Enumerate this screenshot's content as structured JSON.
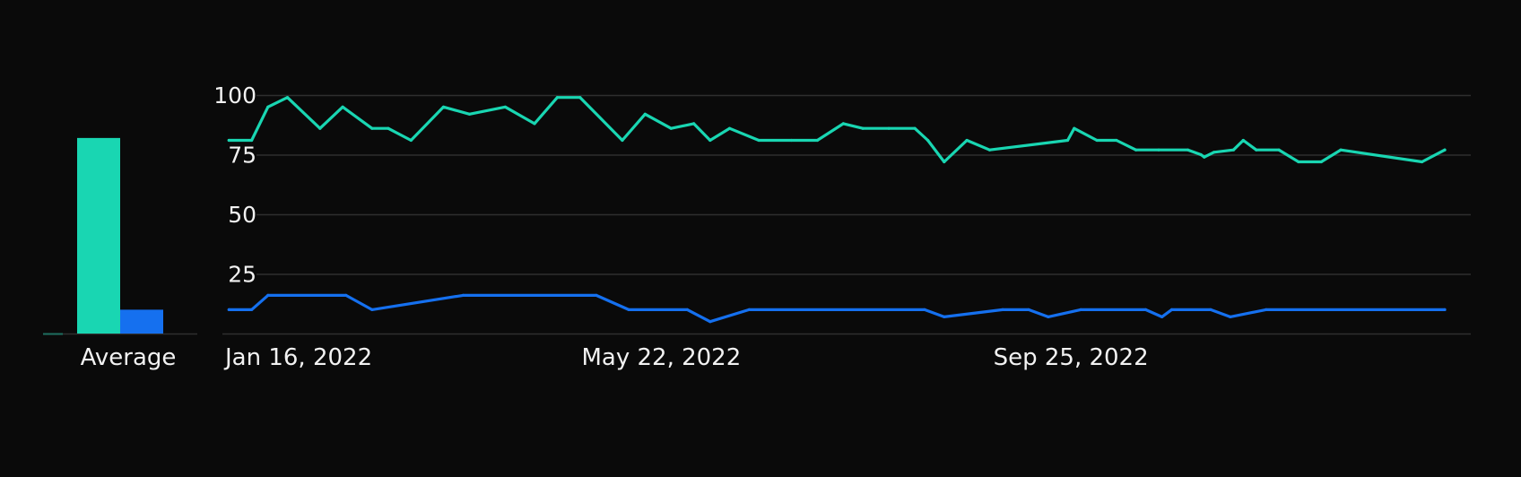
{
  "colors": {
    "background": "#0a0a0a",
    "series_green": "#19d6b2",
    "series_blue": "#1570ef",
    "grid": "#2e2e2e",
    "text": "#f2f2f2"
  },
  "chart_data": [
    {
      "type": "bar",
      "categories": [
        "Average"
      ],
      "series": [
        {
          "color": "#19d6b2",
          "values": [
            82
          ]
        },
        {
          "color": "#1570ef",
          "values": [
            10
          ]
        }
      ],
      "ylim": [
        0,
        100
      ],
      "grid": false
    },
    {
      "type": "line",
      "x_tick_labels": [
        "Jan 16, 2022",
        "May 22, 2022",
        "Sep 25, 2022"
      ],
      "x_ticks": [
        "2022-01-16",
        "2022-05-22",
        "2022-09-25"
      ],
      "y_ticks": [
        25,
        50,
        75,
        100
      ],
      "y_tick_labels": [
        "25",
        "50",
        "75",
        "100"
      ],
      "ylim": [
        0,
        100
      ],
      "xlim": [
        "2022-01-07",
        "2023-01-26"
      ],
      "grid": true,
      "series": [
        {
          "color": "#19d6b2",
          "points": [
            [
              "2022-01-09",
              81
            ],
            [
              "2022-01-16",
              81
            ],
            [
              "2022-01-21",
              95
            ],
            [
              "2022-01-27",
              99
            ],
            [
              "2022-02-06",
              86
            ],
            [
              "2022-02-13",
              95
            ],
            [
              "2022-02-22",
              86
            ],
            [
              "2022-02-27",
              86
            ],
            [
              "2022-03-06",
              81
            ],
            [
              "2022-03-16",
              95
            ],
            [
              "2022-03-24",
              92
            ],
            [
              "2022-04-04",
              95
            ],
            [
              "2022-04-13",
              88
            ],
            [
              "2022-04-20",
              99
            ],
            [
              "2022-04-27",
              99
            ],
            [
              "2022-05-10",
              81
            ],
            [
              "2022-05-17",
              92
            ],
            [
              "2022-05-25",
              86
            ],
            [
              "2022-06-01",
              88
            ],
            [
              "2022-06-06",
              81
            ],
            [
              "2022-06-12",
              86
            ],
            [
              "2022-06-21",
              81
            ],
            [
              "2022-07-01",
              81
            ],
            [
              "2022-07-09",
              81
            ],
            [
              "2022-07-17",
              88
            ],
            [
              "2022-07-23",
              86
            ],
            [
              "2022-07-31",
              86
            ],
            [
              "2022-08-08",
              86
            ],
            [
              "2022-08-12",
              81
            ],
            [
              "2022-08-17",
              72
            ],
            [
              "2022-08-24",
              81
            ],
            [
              "2022-08-31",
              77
            ],
            [
              "2022-09-24",
              81
            ],
            [
              "2022-09-26",
              86
            ],
            [
              "2022-10-03",
              81
            ],
            [
              "2022-10-09",
              81
            ],
            [
              "2022-10-15",
              77
            ],
            [
              "2022-10-22",
              77
            ],
            [
              "2022-10-31",
              77
            ],
            [
              "2022-11-04",
              75
            ],
            [
              "2022-11-05",
              74
            ],
            [
              "2022-11-08",
              76
            ],
            [
              "2022-11-14",
              77
            ],
            [
              "2022-11-17",
              81
            ],
            [
              "2022-11-21",
              77
            ],
            [
              "2022-11-28",
              77
            ],
            [
              "2022-12-04",
              72
            ],
            [
              "2022-12-11",
              72
            ],
            [
              "2022-12-17",
              77
            ],
            [
              "2023-01-11",
              72
            ],
            [
              "2023-01-18",
              77
            ]
          ]
        },
        {
          "color": "#1570ef",
          "points": [
            [
              "2022-01-09",
              10
            ],
            [
              "2022-01-16",
              10
            ],
            [
              "2022-01-21",
              16
            ],
            [
              "2022-02-14",
              16
            ],
            [
              "2022-02-22",
              10
            ],
            [
              "2022-03-22",
              16
            ],
            [
              "2022-05-02",
              16
            ],
            [
              "2022-05-12",
              10
            ],
            [
              "2022-05-30",
              10
            ],
            [
              "2022-06-06",
              5
            ],
            [
              "2022-06-18",
              10
            ],
            [
              "2022-08-11",
              10
            ],
            [
              "2022-08-17",
              7
            ],
            [
              "2022-09-04",
              10
            ],
            [
              "2022-09-12",
              10
            ],
            [
              "2022-09-18",
              7
            ],
            [
              "2022-09-28",
              10
            ],
            [
              "2022-10-18",
              10
            ],
            [
              "2022-10-23",
              7
            ],
            [
              "2022-10-26",
              10
            ],
            [
              "2022-11-07",
              10
            ],
            [
              "2022-11-13",
              7
            ],
            [
              "2022-11-24",
              10
            ],
            [
              "2023-01-18",
              10
            ]
          ]
        }
      ]
    }
  ]
}
